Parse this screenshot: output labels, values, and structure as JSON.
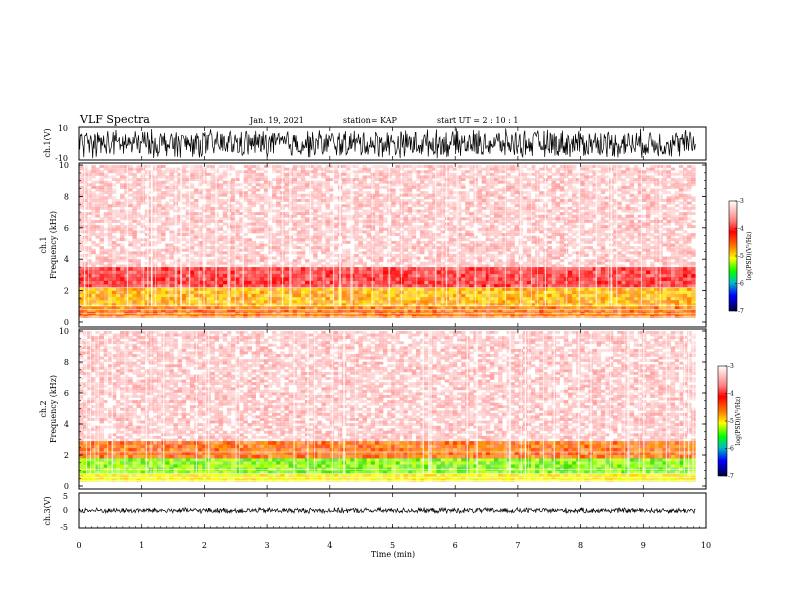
{
  "header": {
    "title": "VLF Spectra",
    "date": "Jan. 19, 2021",
    "station": "station= KAP",
    "start": "start  UT =   2 : 10 : 1"
  },
  "chart_data": [
    {
      "type": "line",
      "name": "waveform-ch1",
      "ylabel": "ch.1(V)",
      "ylim": [
        -10,
        10
      ],
      "yticks": [
        "10",
        "-10"
      ],
      "xlim": [
        0,
        10
      ],
      "x_extent": [
        0,
        9.83
      ]
    },
    {
      "type": "heatmap",
      "name": "spectrogram-ch1",
      "ylabel_line1": "ch.1",
      "ylabel_line2": "Frequency  (kHz)",
      "ylim": [
        0,
        10
      ],
      "yticks": [
        "0",
        "2",
        "4",
        "6",
        "8",
        "10"
      ],
      "xlim": [
        0,
        10
      ],
      "x_extent": [
        0,
        9.83
      ],
      "color_bands_khz": [
        {
          "from": 0.3,
          "to": 1.0,
          "level": "orange"
        },
        {
          "from": 1.0,
          "to": 2.2,
          "level": "orange-yellow"
        },
        {
          "from": 2.2,
          "to": 3.5,
          "level": "red-dense"
        },
        {
          "from": 3.5,
          "to": 10.0,
          "level": "red-sparse"
        }
      ],
      "colorbar": {
        "label": "log(PSD)(V²/Hz)",
        "ticks": [
          "-3",
          "-4",
          "-5",
          "-6",
          "-7"
        ],
        "range": [
          -7,
          -3
        ]
      }
    },
    {
      "type": "heatmap",
      "name": "spectrogram-ch2",
      "ylabel_line1": "ch.2",
      "ylabel_line2": "Frequency  (kHz)",
      "ylim": [
        0,
        10
      ],
      "yticks": [
        "0",
        "2",
        "4",
        "6",
        "8",
        "10"
      ],
      "xlim": [
        0,
        10
      ],
      "x_extent": [
        0,
        9.83
      ],
      "color_bands_khz": [
        {
          "from": 0.3,
          "to": 0.8,
          "level": "yellow"
        },
        {
          "from": 0.8,
          "to": 1.8,
          "level": "green-yellow"
        },
        {
          "from": 1.8,
          "to": 2.9,
          "level": "orange"
        },
        {
          "from": 2.9,
          "to": 10.0,
          "level": "red-sparse"
        }
      ],
      "colorbar": {
        "label": "log(PSD)(V²/Hz)",
        "ticks": [
          "-3",
          "-4",
          "-5",
          "-6",
          "-7"
        ],
        "range": [
          -7,
          -3
        ]
      }
    },
    {
      "type": "line",
      "name": "waveform-ch3",
      "ylabel": "ch.3(V)",
      "ylim": [
        -5,
        5
      ],
      "yticks": [
        "5",
        "0",
        "-5"
      ],
      "xlim": [
        0,
        10
      ],
      "x_extent": [
        0,
        9.83
      ]
    }
  ],
  "xaxis": {
    "label": "Time  (min)",
    "ticks": [
      "0",
      "1",
      "2",
      "3",
      "4",
      "5",
      "6",
      "7",
      "8",
      "9",
      "10"
    ]
  },
  "colors": {
    "red": "#ff0000",
    "orange": "#ff8000",
    "yellow": "#ffff00",
    "green": "#00ff00",
    "blue": "#0000ff"
  }
}
